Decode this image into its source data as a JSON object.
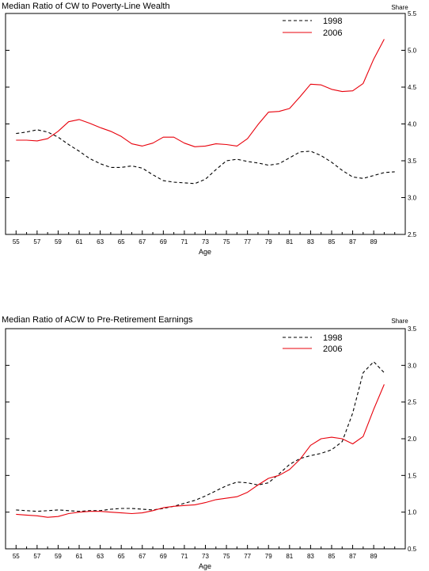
{
  "chart_data": [
    {
      "type": "line",
      "title": "Median Ratio of CW to Poverty-Line Wealth",
      "xlabel": "Age",
      "ylabel_right": "Share",
      "x": [
        55,
        56,
        57,
        58,
        59,
        60,
        61,
        62,
        63,
        64,
        65,
        66,
        67,
        68,
        69,
        70,
        71,
        72,
        73,
        74,
        75,
        76,
        77,
        78,
        79,
        80,
        81,
        82,
        83,
        84,
        85,
        86,
        87,
        88,
        89,
        90,
        91
      ],
      "xtick_labels": [
        "55",
        "57",
        "59",
        "61",
        "63",
        "65",
        "67",
        "69",
        "71",
        "73",
        "75",
        "77",
        "79",
        "81",
        "83",
        "85",
        "87",
        "89"
      ],
      "xlim": [
        54,
        92
      ],
      "ylim": [
        2.5,
        5.5
      ],
      "yticks": [
        "2.5",
        "3.0",
        "3.5",
        "4.0",
        "4.5",
        "5.0",
        "5.5"
      ],
      "legend_position": "top-right",
      "series": [
        {
          "name": "1998",
          "color": "#000000",
          "dash": true,
          "values": [
            3.87,
            3.89,
            3.92,
            3.89,
            3.82,
            3.72,
            3.63,
            3.53,
            3.46,
            3.41,
            3.41,
            3.43,
            3.4,
            3.31,
            3.23,
            3.21,
            3.2,
            3.19,
            3.25,
            3.38,
            3.5,
            3.52,
            3.49,
            3.47,
            3.44,
            3.46,
            3.54,
            3.62,
            3.63,
            3.57,
            3.48,
            3.37,
            3.28,
            3.26,
            3.3,
            3.34,
            3.35
          ]
        },
        {
          "name": "2006",
          "color": "#e8000b",
          "dash": false,
          "values": [
            3.78,
            3.78,
            3.77,
            3.8,
            3.9,
            4.03,
            4.06,
            4.01,
            3.95,
            3.9,
            3.83,
            3.73,
            3.7,
            3.74,
            3.82,
            3.82,
            3.74,
            3.69,
            3.7,
            3.73,
            3.72,
            3.7,
            3.8,
            3.99,
            4.16,
            4.17,
            4.21,
            4.37,
            4.54,
            4.53,
            4.47,
            4.44,
            4.45,
            4.55,
            4.88,
            5.15,
            null
          ]
        }
      ]
    },
    {
      "type": "line",
      "title": "Median Ratio of ACW to Pre-Retirement Earnings",
      "xlabel": "Age",
      "ylabel_right": "Share",
      "x": [
        55,
        56,
        57,
        58,
        59,
        60,
        61,
        62,
        63,
        64,
        65,
        66,
        67,
        68,
        69,
        70,
        71,
        72,
        73,
        74,
        75,
        76,
        77,
        78,
        79,
        80,
        81,
        82,
        83,
        84,
        85,
        86,
        87,
        88,
        89,
        90,
        91
      ],
      "xtick_labels": [
        "55",
        "57",
        "59",
        "61",
        "63",
        "65",
        "67",
        "69",
        "71",
        "73",
        "75",
        "77",
        "79",
        "81",
        "83",
        "85",
        "87",
        "89"
      ],
      "xlim": [
        54,
        92
      ],
      "ylim": [
        0.5,
        3.5
      ],
      "yticks": [
        "0.5",
        "1.0",
        "1.5",
        "2.0",
        "2.5",
        "3.0",
        "3.5"
      ],
      "legend_position": "top-right",
      "series": [
        {
          "name": "1998",
          "color": "#000000",
          "dash": true,
          "values": [
            1.03,
            1.02,
            1.01,
            1.02,
            1.03,
            1.02,
            1.01,
            1.02,
            1.02,
            1.04,
            1.05,
            1.05,
            1.04,
            1.03,
            1.05,
            1.08,
            1.12,
            1.16,
            1.22,
            1.29,
            1.36,
            1.41,
            1.4,
            1.37,
            1.4,
            1.52,
            1.65,
            1.73,
            1.77,
            1.8,
            1.85,
            1.96,
            2.35,
            2.9,
            3.05,
            2.9,
            null
          ]
        },
        {
          "name": "2006",
          "color": "#e8000b",
          "dash": false,
          "values": [
            0.97,
            0.96,
            0.95,
            0.93,
            0.94,
            0.98,
            1.0,
            1.01,
            1.01,
            1.0,
            0.99,
            0.98,
            0.99,
            1.02,
            1.06,
            1.08,
            1.09,
            1.1,
            1.13,
            1.17,
            1.19,
            1.21,
            1.27,
            1.37,
            1.46,
            1.5,
            1.58,
            1.72,
            1.91,
            2.0,
            2.02,
            2.0,
            1.93,
            2.03,
            2.4,
            2.74,
            null
          ]
        }
      ]
    }
  ]
}
